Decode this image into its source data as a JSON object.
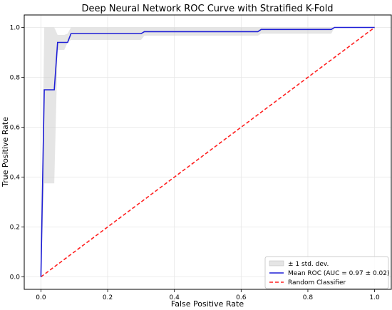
{
  "chart_data": {
    "type": "line",
    "title": "Deep Neural Network ROC Curve with Stratified K-Fold",
    "xlabel": "False Positive Rate",
    "ylabel": "True Positive Rate",
    "xlim": [
      -0.05,
      1.05
    ],
    "ylim": [
      -0.05,
      1.05
    ],
    "xticks": [
      "0.0",
      "0.2",
      "0.4",
      "0.6",
      "0.8",
      "1.0"
    ],
    "yticks": [
      "0.0",
      "0.2",
      "0.4",
      "0.6",
      "0.8",
      "1.0"
    ],
    "grid": true,
    "legend_position": "lower-right",
    "series": [
      {
        "name": "Mean ROC (AUC = 0.97 ± 0.02)",
        "style": "solid",
        "color": "#1f1fd6",
        "x": [
          0.0,
          0.01,
          0.04,
          0.05,
          0.07,
          0.08,
          0.09,
          0.3,
          0.31,
          0.65,
          0.66,
          0.87,
          0.88,
          1.0
        ],
        "y": [
          0.0,
          0.75,
          0.75,
          0.94,
          0.94,
          0.94,
          0.975,
          0.975,
          0.983,
          0.983,
          0.992,
          0.992,
          1.0,
          1.0
        ]
      },
      {
        "name": "Random Classifier",
        "style": "dashed",
        "color": "#ff2020",
        "x": [
          0.0,
          1.0
        ],
        "y": [
          0.0,
          1.0
        ]
      }
    ],
    "band": {
      "name": "± 1 std. dev.",
      "color": "#cccccc",
      "x": [
        0.0,
        0.01,
        0.04,
        0.05,
        0.07,
        0.08,
        0.09,
        0.3,
        0.31,
        0.65,
        0.66,
        0.87,
        0.88,
        1.0
      ],
      "lower": [
        0.0,
        0.375,
        0.375,
        0.91,
        0.91,
        0.94,
        0.95,
        0.95,
        0.967,
        0.967,
        0.975,
        0.975,
        1.0,
        1.0
      ],
      "upper": [
        0.0,
        1.0,
        1.0,
        0.97,
        0.97,
        0.975,
        1.0,
        1.0,
        1.0,
        1.0,
        1.0,
        1.0,
        1.0,
        1.0
      ]
    }
  }
}
